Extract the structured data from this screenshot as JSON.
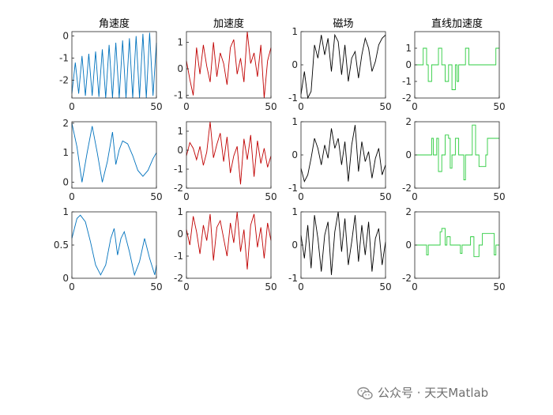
{
  "watermark": {
    "text": "公众号 · 天天Matlab",
    "icon": "wechat-icon"
  },
  "chart_data": [
    {
      "type": "line",
      "row": 1,
      "col": 1,
      "title": "角速度",
      "color": "#0072BD",
      "xlim": [
        0,
        50
      ],
      "ylim": [
        -2.8,
        0.2
      ],
      "xticks": [
        0,
        50
      ],
      "yticks": [
        0,
        -1,
        -2
      ],
      "series": [
        {
          "x": [
            0,
            2,
            4,
            6,
            8,
            10,
            12,
            14,
            16,
            18,
            20,
            22,
            24,
            26,
            28,
            30,
            32,
            34,
            36,
            38,
            40,
            42,
            44,
            46,
            48,
            50
          ],
          "y": [
            -2.6,
            -1.2,
            -2.6,
            -0.9,
            -2.7,
            -0.8,
            -2.7,
            -0.7,
            -2.75,
            -0.6,
            -2.8,
            -0.4,
            -2.8,
            -0.3,
            -2.8,
            -0.2,
            -2.8,
            -0.1,
            -2.8,
            0.0,
            -2.8,
            0.1,
            -2.8,
            0.15,
            -2.7,
            -0.3
          ]
        }
      ]
    },
    {
      "type": "line",
      "row": 1,
      "col": 2,
      "title": "加速度",
      "color": "#C00000",
      "xlim": [
        0,
        50
      ],
      "ylim": [
        -1.1,
        1.4
      ],
      "xticks": [
        0,
        50
      ],
      "yticks": [
        1,
        0,
        -1
      ],
      "series": [
        {
          "x": [
            0,
            2,
            4,
            6,
            8,
            10,
            12,
            14,
            16,
            18,
            20,
            22,
            24,
            26,
            28,
            30,
            32,
            34,
            36,
            38,
            40,
            42,
            44,
            46,
            48,
            50
          ],
          "y": [
            0.3,
            -0.4,
            -1.0,
            0.8,
            -0.2,
            0.9,
            0.1,
            -0.5,
            1.0,
            -0.3,
            0.6,
            0.2,
            -0.6,
            0.8,
            1.1,
            -0.2,
            0.4,
            -0.5,
            1.4,
            0.2,
            0.6,
            -0.3,
            0.9,
            -1.1,
            0.3,
            0.8
          ]
        }
      ]
    },
    {
      "type": "line",
      "row": 1,
      "col": 3,
      "title": "磁场",
      "color": "#000000",
      "xlim": [
        0,
        50
      ],
      "ylim": [
        -1,
        1
      ],
      "xticks": [
        0,
        50
      ],
      "yticks": [
        1,
        0,
        -1
      ],
      "series": [
        {
          "x": [
            0,
            2,
            4,
            6,
            8,
            10,
            12,
            14,
            16,
            18,
            20,
            22,
            24,
            26,
            28,
            30,
            32,
            34,
            36,
            38,
            40,
            42,
            44,
            46,
            48,
            50
          ],
          "y": [
            -0.9,
            -0.2,
            -1.0,
            -0.8,
            0.6,
            0.2,
            0.9,
            0.3,
            0.8,
            -0.2,
            0.9,
            0.7,
            -0.3,
            0.6,
            -0.5,
            0.2,
            0.4,
            -0.4,
            0.3,
            0.8,
            0.5,
            -0.2,
            0.1,
            0.6,
            0.8,
            0.9
          ]
        }
      ]
    },
    {
      "type": "line",
      "row": 1,
      "col": 4,
      "title": "直线加速度",
      "color": "#2ECC40",
      "xlim": [
        0,
        50
      ],
      "ylim": [
        -2,
        2
      ],
      "xticks": [
        0,
        50
      ],
      "yticks": [
        1,
        0,
        -1,
        -2
      ],
      "series": [
        {
          "x": [
            0,
            5,
            5,
            7,
            7,
            8,
            8,
            10,
            10,
            12,
            12,
            14,
            14,
            16,
            16,
            18,
            18,
            20,
            20,
            22,
            22,
            24,
            24,
            25,
            25,
            26,
            26,
            28,
            28,
            30,
            30,
            32,
            32,
            34,
            34,
            36,
            36,
            38,
            38,
            40,
            40,
            42,
            42,
            44,
            44,
            48,
            48,
            50
          ],
          "y": [
            0,
            0,
            1,
            1,
            0,
            0,
            -1,
            -1,
            0,
            0,
            0,
            0,
            1,
            1,
            0,
            0,
            -1,
            -1,
            0,
            0,
            -1.5,
            -1.5,
            0,
            0,
            -1,
            -1,
            0,
            0,
            0,
            0,
            1,
            1,
            0,
            0,
            0,
            0,
            0,
            0,
            0,
            0,
            0,
            0,
            0,
            0,
            0,
            0,
            1,
            1
          ]
        }
      ]
    },
    {
      "type": "line",
      "row": 2,
      "col": 1,
      "title": "",
      "color": "#0072BD",
      "xlim": [
        0,
        50
      ],
      "ylim": [
        -0.2,
        2.05
      ],
      "xticks": [
        0,
        50
      ],
      "yticks": [
        2,
        1,
        0
      ],
      "series": [
        {
          "x": [
            0,
            3,
            6,
            9,
            12,
            15,
            18,
            21,
            24,
            26,
            28,
            30,
            33,
            36,
            39,
            42,
            45,
            48,
            50
          ],
          "y": [
            2.0,
            1.2,
            0.0,
            1.0,
            1.9,
            1.0,
            0.0,
            0.7,
            1.7,
            0.6,
            1.1,
            1.4,
            1.3,
            0.9,
            0.4,
            0.2,
            0.4,
            0.8,
            1.0
          ]
        }
      ]
    },
    {
      "type": "line",
      "row": 2,
      "col": 2,
      "title": "",
      "color": "#C00000",
      "xlim": [
        0,
        50
      ],
      "ylim": [
        -2,
        1.5
      ],
      "xticks": [
        0,
        50
      ],
      "yticks": [
        1,
        0,
        -1,
        -2
      ],
      "series": [
        {
          "x": [
            0,
            2,
            4,
            6,
            8,
            10,
            12,
            14,
            16,
            18,
            20,
            22,
            24,
            26,
            28,
            30,
            32,
            34,
            36,
            38,
            40,
            42,
            44,
            46,
            48,
            50
          ],
          "y": [
            -0.3,
            0.4,
            0.1,
            -0.5,
            0.2,
            -0.8,
            -0.1,
            1.5,
            -0.4,
            0.3,
            0.9,
            -0.6,
            0.7,
            -1.2,
            -0.3,
            0.2,
            -1.8,
            0.6,
            -0.5,
            0.8,
            -1.4,
            0.5,
            -0.7,
            0.1,
            -0.9,
            -0.3
          ]
        }
      ]
    },
    {
      "type": "line",
      "row": 2,
      "col": 3,
      "title": "",
      "color": "#000000",
      "xlim": [
        0,
        50
      ],
      "ylim": [
        -1,
        1
      ],
      "xticks": [
        0,
        50
      ],
      "yticks": [
        1,
        0,
        -1
      ],
      "series": [
        {
          "x": [
            0,
            2,
            4,
            6,
            8,
            10,
            12,
            14,
            16,
            18,
            20,
            22,
            24,
            26,
            28,
            30,
            32,
            34,
            36,
            38,
            40,
            42,
            44,
            46,
            48,
            50
          ],
          "y": [
            -0.4,
            -0.8,
            -0.6,
            -0.1,
            0.5,
            0.2,
            -0.3,
            0.3,
            -0.1,
            0.8,
            0.2,
            0.5,
            -0.3,
            0.4,
            -0.8,
            0.3,
            0.9,
            -0.5,
            0.4,
            -0.2,
            0.1,
            -0.7,
            -0.1,
            0.2,
            -0.6,
            -0.3
          ]
        }
      ]
    },
    {
      "type": "line",
      "row": 2,
      "col": 4,
      "title": "",
      "color": "#2ECC40",
      "xlim": [
        0,
        50
      ],
      "ylim": [
        -2,
        2
      ],
      "xticks": [
        0,
        50
      ],
      "yticks": [
        2,
        0,
        -2
      ],
      "series": [
        {
          "x": [
            0,
            10,
            10,
            11,
            11,
            13,
            13,
            14,
            14,
            16,
            16,
            18,
            18,
            20,
            20,
            21,
            21,
            22,
            22,
            24,
            24,
            26,
            26,
            29,
            29,
            30,
            30,
            34,
            34,
            36,
            36,
            38,
            38,
            42,
            42,
            43,
            43,
            50
          ],
          "y": [
            0,
            0,
            1,
            1,
            0,
            0,
            1,
            1,
            -1,
            -1,
            0,
            0,
            1.2,
            1.2,
            1,
            1,
            -0.8,
            -0.8,
            0,
            0,
            1,
            1,
            0,
            0,
            -1.5,
            -1.5,
            0,
            0,
            1.8,
            1.8,
            0,
            0,
            -0.7,
            -0.7,
            0,
            0,
            1,
            1
          ]
        }
      ]
    },
    {
      "type": "line",
      "row": 3,
      "col": 1,
      "title": "",
      "color": "#0072BD",
      "xlim": [
        0,
        50
      ],
      "ylim": [
        0,
        1
      ],
      "xticks": [
        0,
        50
      ],
      "yticks": [
        1,
        0.5,
        0
      ],
      "series": [
        {
          "x": [
            0,
            3,
            5,
            8,
            11,
            14,
            17,
            20,
            23,
            25,
            27,
            29,
            31,
            34,
            37,
            40,
            43,
            46,
            49,
            50
          ],
          "y": [
            0.6,
            0.9,
            0.95,
            0.85,
            0.55,
            0.2,
            0.05,
            0.2,
            0.6,
            0.75,
            0.35,
            0.6,
            0.7,
            0.4,
            0.05,
            0.25,
            0.6,
            0.3,
            0.05,
            0.2
          ]
        }
      ]
    },
    {
      "type": "line",
      "row": 3,
      "col": 2,
      "title": "",
      "color": "#C00000",
      "xlim": [
        0,
        50
      ],
      "ylim": [
        -2,
        1
      ],
      "xticks": [
        0,
        50
      ],
      "yticks": [
        1,
        0,
        -1,
        -2
      ],
      "series": [
        {
          "x": [
            0,
            2,
            4,
            6,
            8,
            10,
            12,
            14,
            16,
            18,
            20,
            22,
            24,
            26,
            28,
            30,
            32,
            34,
            36,
            38,
            40,
            42,
            44,
            46,
            48,
            50
          ],
          "y": [
            0.2,
            -0.5,
            0.8,
            0.1,
            -0.9,
            0.4,
            -0.3,
            0.9,
            -1.2,
            0.3,
            0.6,
            -0.2,
            -1.0,
            0.5,
            -0.4,
            1.0,
            -0.8,
            0.2,
            -1.6,
            0.4,
            0.9,
            -0.6,
            0.3,
            -1.1,
            0.5,
            -0.3
          ]
        }
      ]
    },
    {
      "type": "line",
      "row": 3,
      "col": 3,
      "title": "",
      "color": "#000000",
      "xlim": [
        0,
        50
      ],
      "ylim": [
        -1,
        1
      ],
      "xticks": [
        0,
        50
      ],
      "yticks": [
        1,
        0,
        -1
      ],
      "series": [
        {
          "x": [
            0,
            2,
            4,
            6,
            8,
            10,
            12,
            14,
            16,
            18,
            20,
            22,
            24,
            26,
            28,
            30,
            32,
            34,
            36,
            38,
            40,
            42,
            44,
            46,
            48,
            50
          ],
          "y": [
            0.3,
            -0.4,
            0.6,
            -0.7,
            0.9,
            0.2,
            -0.8,
            0.3,
            0.7,
            -0.9,
            0.4,
            1.0,
            -0.2,
            0.8,
            -0.6,
            0.1,
            0.9,
            -0.5,
            0.6,
            -0.3,
            0.7,
            -0.8,
            0.2,
            0.5,
            -0.6,
            0.1
          ]
        }
      ]
    },
    {
      "type": "line",
      "row": 3,
      "col": 4,
      "title": "",
      "color": "#2ECC40",
      "xlim": [
        0,
        50
      ],
      "ylim": [
        -2,
        2
      ],
      "xticks": [
        0,
        50
      ],
      "yticks": [
        2,
        0,
        -2
      ],
      "series": [
        {
          "x": [
            0,
            7,
            7,
            8,
            8,
            15,
            15,
            16,
            16,
            18,
            18,
            19,
            19,
            21,
            21,
            27,
            27,
            28,
            28,
            33,
            33,
            35,
            35,
            38,
            38,
            40,
            40,
            47,
            47,
            48,
            48,
            50
          ],
          "y": [
            0,
            0,
            -0.6,
            -0.6,
            0,
            0,
            0.8,
            0.8,
            1,
            1,
            0,
            0,
            0.5,
            0.5,
            0,
            0,
            -0.5,
            -0.5,
            0,
            0,
            0.5,
            0.5,
            -0.7,
            -0.7,
            0,
            0,
            0.7,
            0.7,
            -0.6,
            -0.6,
            0,
            0
          ]
        }
      ]
    }
  ]
}
